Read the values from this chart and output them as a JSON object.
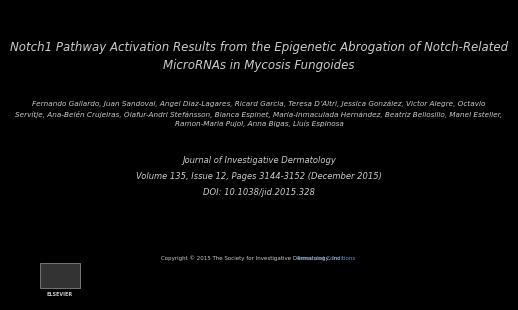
{
  "background_color": "#000000",
  "text_color": "#cccccc",
  "title": "Notch1 Pathway Activation Results from the Epigenetic Abrogation of Notch-Related\nMicroRNAs in Mycosis Fungoides",
  "authors": "Fernando Gallardo, Juan Sandoval, Angel Diaz-Lagares, Ricard Garcia, Teresa D’Altri, Jessica González, Victor Alegre, Octavio\nServítje, Ana-Belén Crujeiras, Ólafur-Andri Stefánsson, Blanca Espinet, Maria-Inmaculada Hernández, Beatriz Bellosillo, Manel Esteller,\nRamon-Maria Pujol, Anna Bigas, Lluís Espinosa",
  "journal": "Journal of Investigative Dermatology",
  "volume": "Volume 135, Issue 12, Pages 3144-3152 (December 2015)",
  "doi": "DOI: 10.1038/jid.2015.328",
  "copyright": "Copyright © 2015 The Society for Investigative Dermatology, Inc ",
  "terms": "Terms and Conditions",
  "elsevier_color": "#cccccc",
  "link_color": "#6699cc"
}
